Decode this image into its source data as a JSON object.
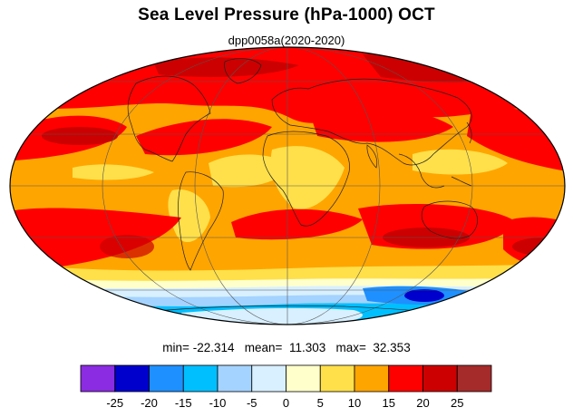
{
  "title": "Sea Level Pressure (hPa-1000) OCT",
  "subtitle": "dpp0058a(2020-2020)",
  "stats": {
    "min_label": "min=",
    "min": "-22.314",
    "mean_label": "mean=",
    "mean": "11.303",
    "max_label": "max=",
    "max": "32.353"
  },
  "projection": "mollweide",
  "colorbar": {
    "levels": [
      "-25",
      "-20",
      "-15",
      "-10",
      "-5",
      "0",
      "5",
      "10",
      "15",
      "20",
      "25"
    ],
    "colors": [
      "#8b2be2",
      "#0000cd",
      "#1e90ff",
      "#00bfff",
      "#a4d3ff",
      "#d8f0ff",
      "#ffffcc",
      "#ffe04a",
      "#ffa500",
      "#ff0000",
      "#cc0000",
      "#a52a2a"
    ]
  }
}
